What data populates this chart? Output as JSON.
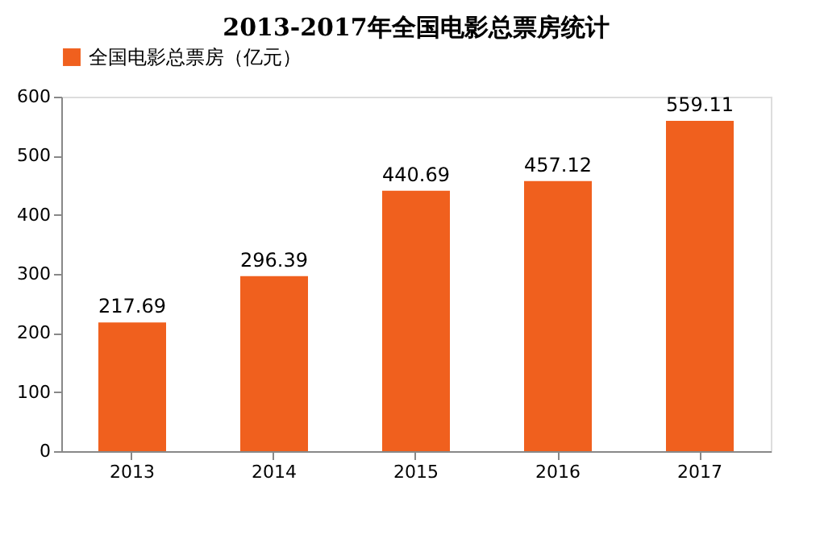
{
  "chart_data": {
    "type": "bar",
    "title": "2013-2017年全国电影总票房统计",
    "categories": [
      "2013",
      "2014",
      "2015",
      "2016",
      "2017"
    ],
    "series": [
      {
        "name": "全国电影总票房（亿元）",
        "color": "#f0601e",
        "values": [
          217.69,
          296.39,
          440.69,
          457.12,
          559.11
        ]
      }
    ],
    "ylim": [
      0,
      600
    ],
    "yticks": [
      0,
      100,
      200,
      300,
      400,
      500,
      600
    ],
    "grid": false,
    "legend": "top",
    "data_labels": true
  }
}
